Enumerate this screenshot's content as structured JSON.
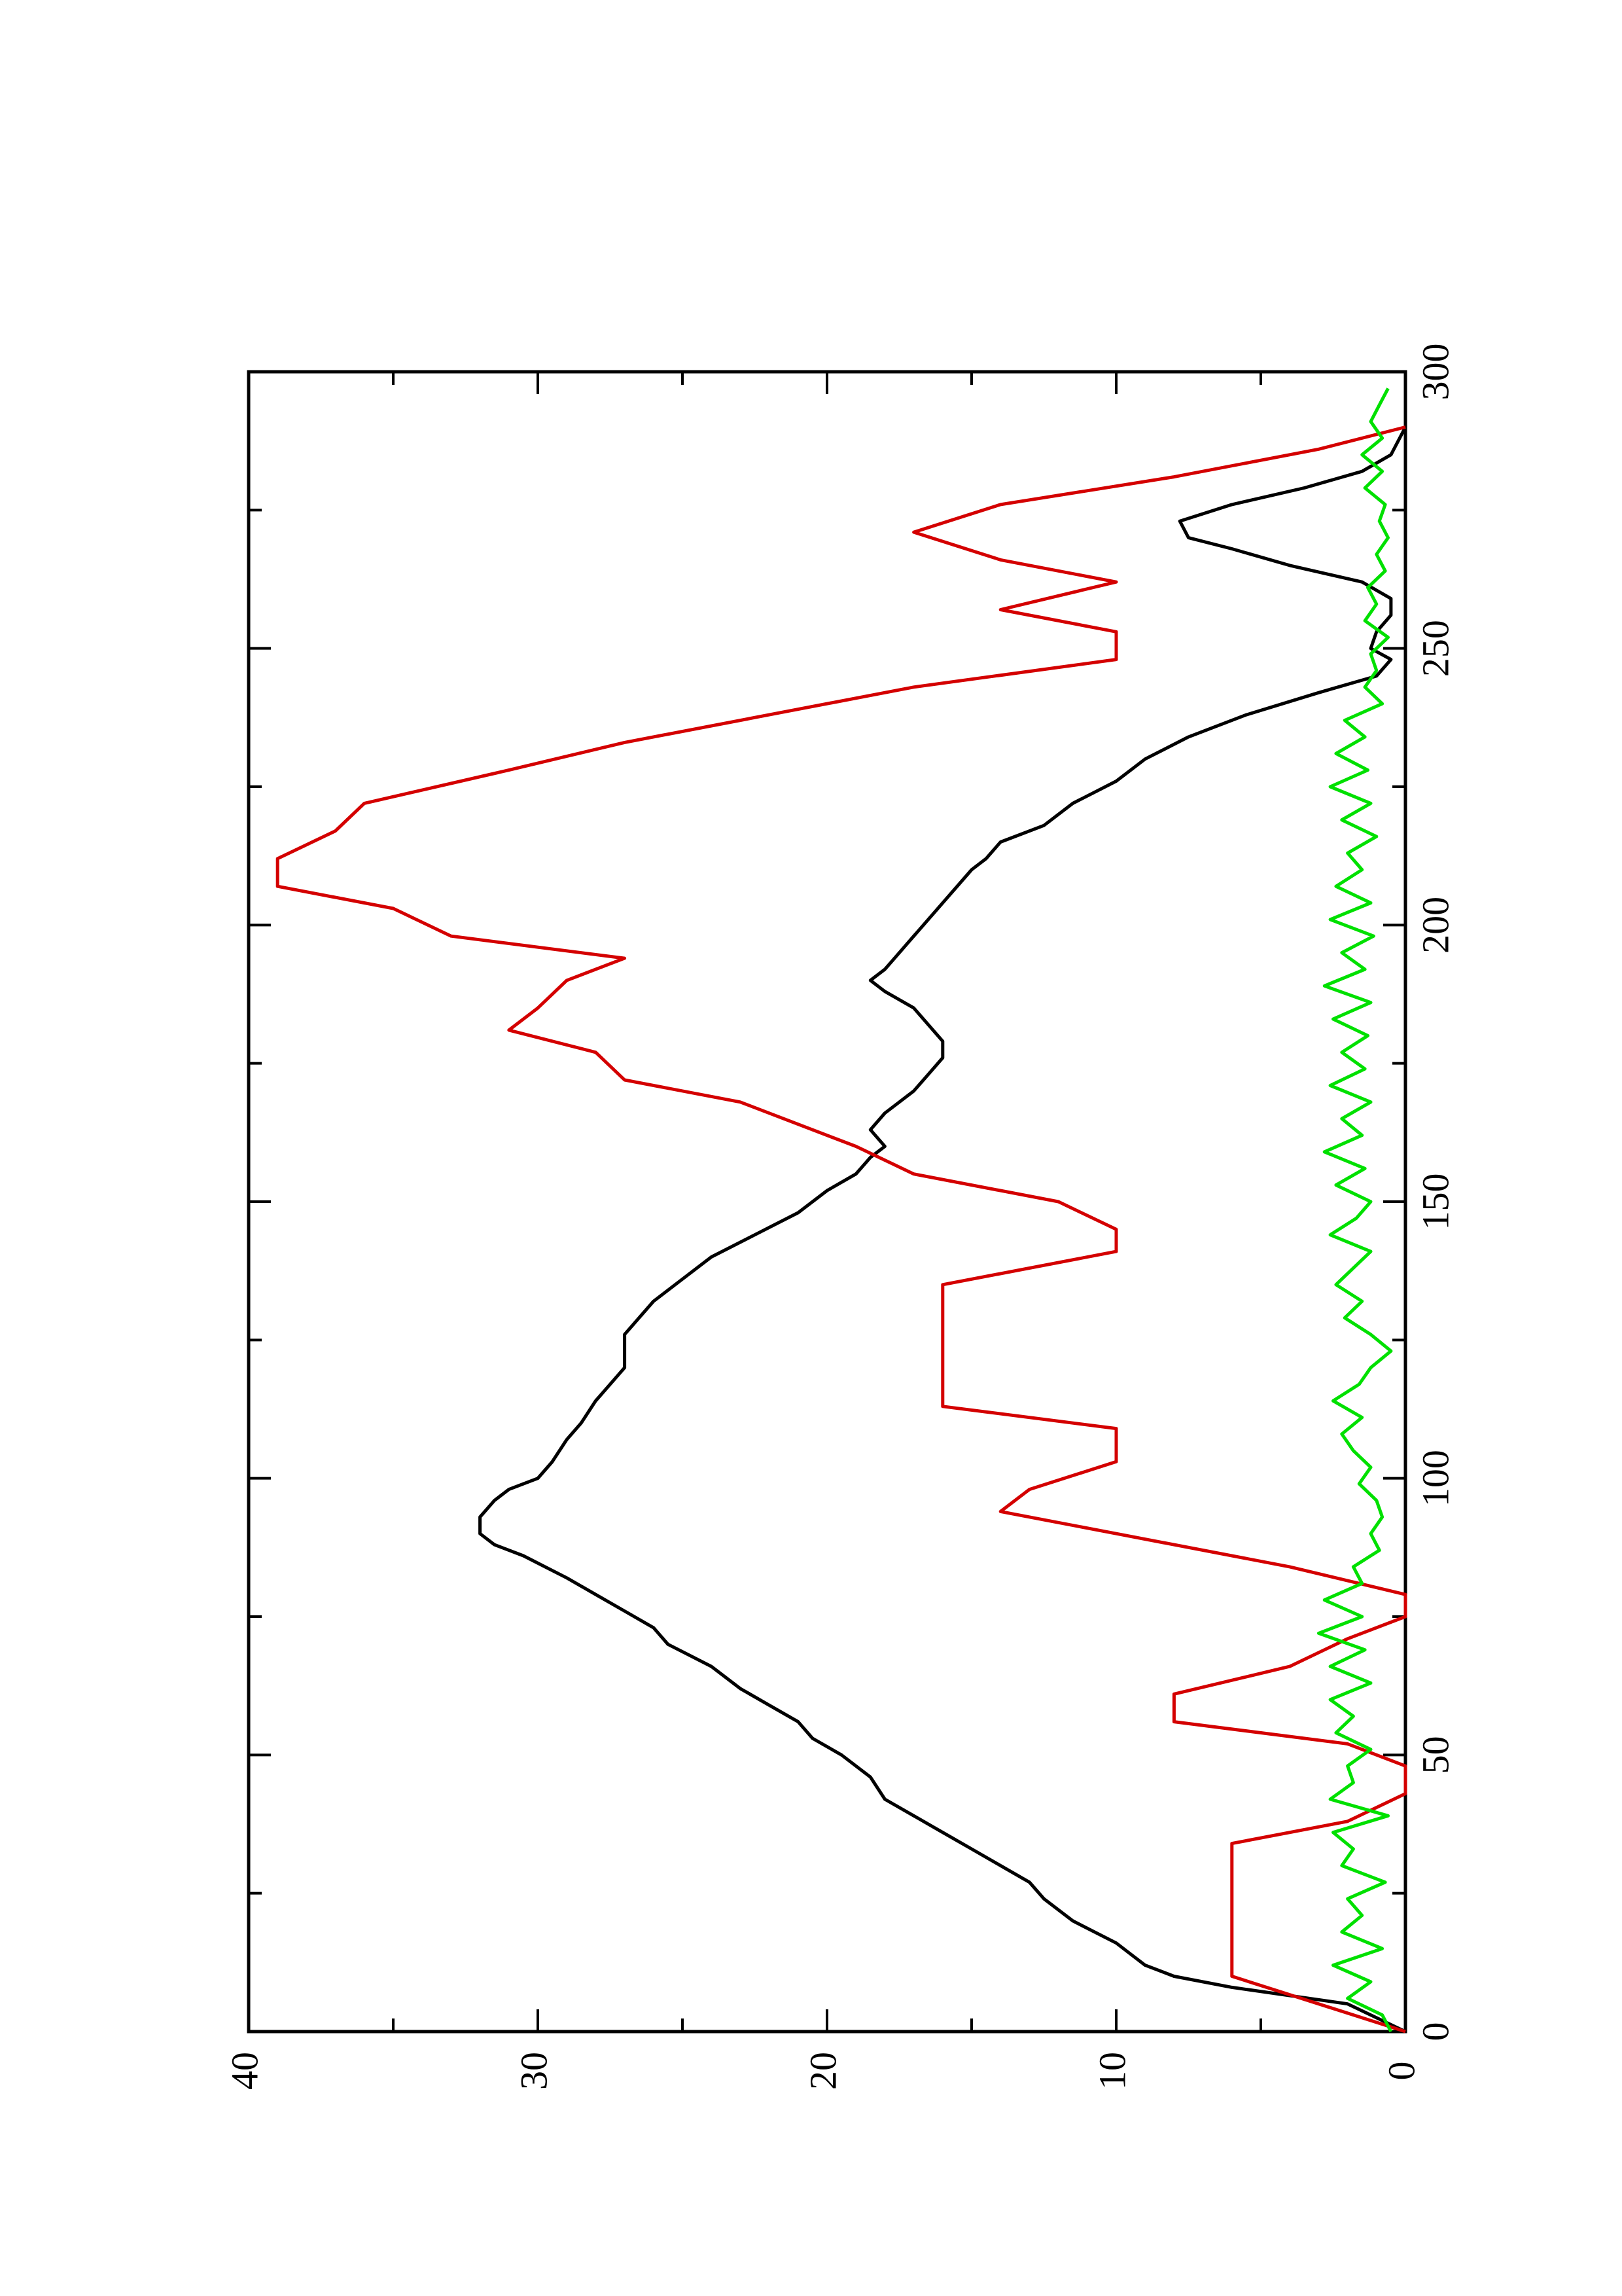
{
  "chart_data": {
    "type": "line",
    "orientation": "rotated 90° counter-clockwise (x axis runs bottom-to-top on the right edge, y axis runs right-to-left)",
    "title": "",
    "xlabel": "",
    "ylabel": "",
    "xlim": [
      0,
      300
    ],
    "ylim": [
      0,
      40
    ],
    "x_ticks": [
      "0",
      "50",
      "100",
      "150",
      "200",
      "250",
      "300"
    ],
    "y_ticks": [
      "0",
      "10",
      "20",
      "30",
      "40"
    ],
    "grid": false,
    "legend": "none",
    "series": [
      {
        "color": "#000000",
        "x": [
          0,
          5,
          8,
          10,
          12,
          14,
          16,
          20,
          24,
          27,
          30,
          33,
          36,
          39,
          42,
          46,
          50,
          53,
          56,
          59,
          62,
          66,
          70,
          73,
          76,
          79,
          82,
          86,
          88,
          90,
          93,
          96,
          98,
          100,
          103,
          107,
          110,
          114,
          117,
          120,
          123,
          126,
          129,
          132,
          136,
          140,
          144,
          148,
          152,
          155,
          158,
          160,
          163,
          166,
          168,
          170,
          173,
          176,
          179,
          182,
          185,
          188,
          190,
          192,
          195,
          198,
          201,
          204,
          207,
          210,
          212,
          215,
          218,
          222,
          226,
          230,
          234,
          238,
          242,
          245,
          248,
          250,
          253,
          256,
          259,
          262,
          265,
          268,
          270,
          273,
          276,
          279,
          282,
          285,
          288,
          290
        ],
        "y": [
          0,
          2,
          6,
          8,
          9,
          9.5,
          10,
          11.5,
          12.5,
          13,
          14,
          15,
          16,
          17,
          18,
          18.5,
          19.5,
          20.5,
          21,
          22,
          23,
          24,
          25.5,
          26,
          27,
          28,
          29,
          30.5,
          31.5,
          32,
          32,
          31.5,
          31,
          30,
          29.5,
          29,
          28.5,
          28,
          27.5,
          27,
          27,
          27,
          26.5,
          26,
          25,
          24,
          22.5,
          21,
          20,
          19,
          18.5,
          18,
          18.5,
          18,
          17.5,
          17,
          16.5,
          16,
          16,
          16.5,
          17,
          18,
          18.5,
          18,
          17.5,
          17,
          16.5,
          16,
          15.5,
          15,
          14.5,
          14,
          12.5,
          11.5,
          10,
          9,
          7.5,
          5.5,
          3,
          1,
          0.5,
          1.2,
          1,
          0.5,
          0.5,
          1.5,
          4,
          6,
          7.5,
          7.8,
          6,
          3.5,
          1.5,
          0.5,
          0.2,
          0
        ]
      },
      {
        "color": "#d40000",
        "x": [
          0,
          10,
          34,
          38,
          43,
          48,
          52,
          56,
          61,
          66,
          71,
          75,
          79,
          84,
          90,
          94,
          98,
          103,
          109,
          113,
          117,
          124,
          129,
          135,
          141,
          145,
          150,
          155,
          160,
          164,
          168,
          172,
          177,
          181,
          185,
          190,
          194,
          198,
          203,
          207,
          212,
          217,
          222,
          228,
          233,
          238,
          243,
          248,
          253,
          257,
          262,
          266,
          271,
          276,
          281,
          286,
          290
        ],
        "y": [
          0,
          6,
          6,
          2,
          0,
          0,
          2,
          8,
          8,
          4,
          2,
          0,
          0,
          4,
          10,
          14,
          13,
          10,
          10,
          16,
          16,
          16,
          16,
          16,
          10,
          10,
          12,
          17,
          19,
          21,
          23,
          27,
          28,
          31,
          30,
          29,
          27,
          33,
          35,
          39,
          39,
          37,
          36,
          31,
          27,
          22,
          17,
          10,
          10,
          14,
          10,
          14,
          17,
          14,
          8,
          3,
          0
        ]
      },
      {
        "color": "#00e000",
        "x": [
          0,
          3,
          6,
          9,
          12,
          15,
          18,
          21,
          24,
          27,
          30,
          33,
          36,
          39,
          42,
          45,
          48,
          51,
          54,
          57,
          60,
          63,
          66,
          69,
          72,
          75,
          78,
          81,
          84,
          87,
          90,
          93,
          96,
          99,
          102,
          105,
          108,
          111,
          114,
          117,
          120,
          123,
          126,
          129,
          132,
          135,
          138,
          141,
          144,
          147,
          150,
          153,
          156,
          159,
          162,
          165,
          168,
          171,
          174,
          177,
          180,
          183,
          186,
          189,
          192,
          195,
          198,
          201,
          204,
          207,
          210,
          213,
          216,
          219,
          222,
          225,
          228,
          231,
          234,
          237,
          240,
          243,
          246,
          249,
          252,
          255,
          258,
          261,
          264,
          267,
          270,
          273,
          276,
          279,
          282,
          285,
          288,
          291,
          294,
          297
        ],
        "y": [
          0.5,
          0.8,
          2,
          1.2,
          2.5,
          0.8,
          2.2,
          1.5,
          2,
          0.7,
          2.2,
          1.8,
          2.5,
          0.6,
          2.6,
          1.8,
          2,
          1.2,
          2.4,
          1.8,
          2.6,
          1.2,
          2.6,
          1.4,
          3,
          1.5,
          2.8,
          1.5,
          1.8,
          0.9,
          1.2,
          0.8,
          1,
          1.6,
          1.2,
          1.8,
          2.2,
          1.5,
          2.5,
          1.6,
          1.2,
          0.5,
          1.2,
          2.1,
          1.5,
          2.4,
          1.8,
          1.2,
          2.6,
          1.7,
          1.2,
          2.4,
          1.4,
          2.8,
          1.5,
          2.2,
          1.2,
          2.6,
          1.4,
          2.2,
          1.3,
          2.5,
          1.2,
          2.8,
          1.4,
          2.2,
          1.1,
          2.6,
          1.2,
          2.4,
          1.5,
          2,
          1,
          2.2,
          1.2,
          2.6,
          1.3,
          2.4,
          1.4,
          2.1,
          0.8,
          1.4,
          1,
          1.2,
          0.6,
          1.4,
          1,
          1.3,
          0.7,
          1,
          0.6,
          0.9,
          0.7,
          1.4,
          0.8,
          1.5,
          0.8,
          1.2,
          0.9,
          0.6
        ]
      }
    ]
  }
}
